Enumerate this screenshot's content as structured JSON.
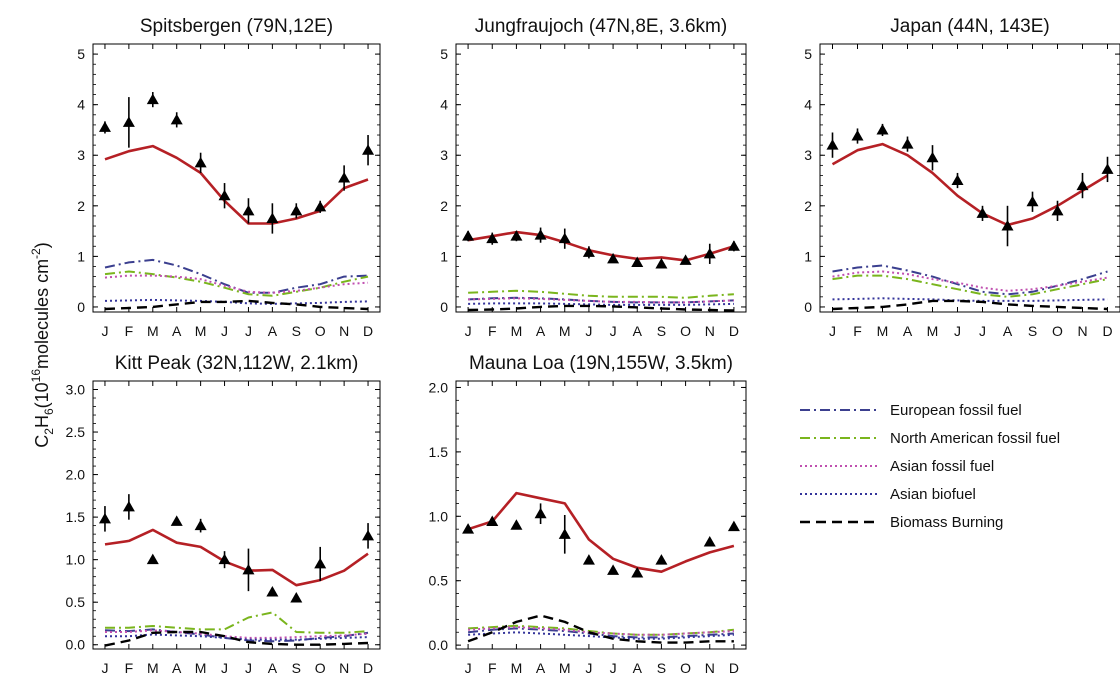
{
  "figure": {
    "ylabel_prefix": "C",
    "ylabel_sub1": "2",
    "ylabel_mid": "H",
    "ylabel_sub2": "6",
    "ylabel_units_pre": "(10",
    "ylabel_exp": "16",
    "ylabel_units_post": "molecules cm",
    "ylabel_exp2": "-2",
    "ylabel_close": ")"
  },
  "legend": [
    {
      "label": "European fossil fuel",
      "color": "#3b3f8f",
      "style": "dashdot"
    },
    {
      "label": "North American fossil fuel",
      "color": "#7ab51d",
      "style": "dashdot"
    },
    {
      "label": "Asian fossil fuel",
      "color": "#c050b0",
      "style": "dotted"
    },
    {
      "label": "Asian biofuel",
      "color": "#34349a",
      "style": "dotted"
    },
    {
      "label": "Biomass Burning",
      "color": "#000000",
      "style": "dashed"
    }
  ],
  "chart_data": [
    {
      "type": "line",
      "title": "Spitsbergen (79N,12E)",
      "categories": [
        "J",
        "F",
        "M",
        "A",
        "M",
        "J",
        "J",
        "A",
        "S",
        "O",
        "N",
        "D"
      ],
      "ylim": [
        -0.1,
        5.2
      ],
      "yticks": [
        "0",
        "1",
        "2",
        "3",
        "4",
        "5"
      ],
      "series": [
        {
          "values": [
            2.92,
            3.08,
            3.18,
            2.95,
            2.65,
            2.1,
            1.65,
            1.65,
            1.75,
            1.9,
            2.35,
            2.52
          ],
          "color": "#b52025",
          "style": "solid"
        },
        {
          "values": [
            0.78,
            0.88,
            0.93,
            0.82,
            0.65,
            0.45,
            0.28,
            0.28,
            0.38,
            0.45,
            0.6,
            0.62
          ],
          "color": "#3b3f8f",
          "style": "dashdot"
        },
        {
          "values": [
            0.65,
            0.7,
            0.65,
            0.58,
            0.5,
            0.38,
            0.25,
            0.22,
            0.3,
            0.38,
            0.5,
            0.6
          ],
          "color": "#7ab51d",
          "style": "dashdot"
        },
        {
          "values": [
            0.58,
            0.62,
            0.62,
            0.6,
            0.55,
            0.42,
            0.3,
            0.28,
            0.32,
            0.38,
            0.45,
            0.48
          ],
          "color": "#c050b0",
          "style": "dotted"
        },
        {
          "values": [
            0.12,
            0.13,
            0.14,
            0.13,
            0.12,
            0.1,
            0.07,
            0.06,
            0.07,
            0.08,
            0.1,
            0.11
          ],
          "color": "#34349a",
          "style": "dotted"
        },
        {
          "values": [
            -0.04,
            -0.02,
            0.0,
            0.05,
            0.1,
            0.1,
            0.12,
            0.08,
            0.05,
            0.0,
            -0.02,
            -0.04
          ],
          "color": "#000000",
          "style": "dashed"
        }
      ],
      "observed": {
        "values": [
          3.55,
          3.65,
          4.1,
          3.7,
          2.85,
          2.2,
          1.9,
          1.75,
          1.9,
          1.98,
          2.55,
          3.1
        ],
        "errors": [
          0.12,
          0.5,
          0.15,
          0.15,
          0.2,
          0.25,
          0.25,
          0.3,
          0.15,
          0.12,
          0.25,
          0.3
        ]
      }
    },
    {
      "type": "line",
      "title": "Jungfraujoch (47N,8E, 3.6km)",
      "categories": [
        "J",
        "F",
        "M",
        "A",
        "M",
        "J",
        "J",
        "A",
        "S",
        "O",
        "N",
        "D"
      ],
      "ylim": [
        -0.1,
        5.2
      ],
      "yticks": [
        "0",
        "1",
        "2",
        "3",
        "4",
        "5"
      ],
      "series": [
        {
          "values": [
            1.32,
            1.4,
            1.48,
            1.42,
            1.28,
            1.12,
            1.02,
            0.95,
            0.98,
            0.92,
            1.05,
            1.2
          ],
          "color": "#b52025",
          "style": "solid"
        },
        {
          "values": [
            0.15,
            0.17,
            0.18,
            0.17,
            0.15,
            0.12,
            0.1,
            0.09,
            0.09,
            0.09,
            0.11,
            0.13
          ],
          "color": "#3b3f8f",
          "style": "dashdot"
        },
        {
          "values": [
            0.28,
            0.3,
            0.32,
            0.3,
            0.26,
            0.22,
            0.2,
            0.2,
            0.2,
            0.18,
            0.22,
            0.25
          ],
          "color": "#7ab51d",
          "style": "dashdot"
        },
        {
          "values": [
            0.15,
            0.16,
            0.17,
            0.16,
            0.14,
            0.12,
            0.1,
            0.1,
            0.09,
            0.09,
            0.11,
            0.13
          ],
          "color": "#c050b0",
          "style": "dotted"
        },
        {
          "values": [
            0.06,
            0.07,
            0.07,
            0.07,
            0.06,
            0.05,
            0.04,
            0.04,
            0.04,
            0.04,
            0.05,
            0.06
          ],
          "color": "#34349a",
          "style": "dotted"
        },
        {
          "values": [
            -0.06,
            -0.05,
            -0.03,
            0.0,
            0.02,
            0.02,
            0.01,
            -0.01,
            -0.03,
            -0.05,
            -0.06,
            -0.07
          ],
          "color": "#000000",
          "style": "dashed"
        }
      ],
      "observed": {
        "values": [
          1.4,
          1.35,
          1.4,
          1.42,
          1.35,
          1.08,
          0.95,
          0.88,
          0.85,
          0.92,
          1.05,
          1.2
        ],
        "errors": [
          0.1,
          0.12,
          0.1,
          0.15,
          0.2,
          0.12,
          0.08,
          0.08,
          0.08,
          0.08,
          0.2,
          0.1
        ]
      }
    },
    {
      "type": "line",
      "title": "Japan (44N, 143E)",
      "categories": [
        "J",
        "F",
        "M",
        "A",
        "M",
        "J",
        "J",
        "A",
        "S",
        "O",
        "N",
        "D"
      ],
      "ylim": [
        -0.1,
        5.2
      ],
      "yticks": [
        "0",
        "1",
        "2",
        "3",
        "4",
        "5"
      ],
      "series": [
        {
          "values": [
            2.82,
            3.1,
            3.22,
            3.0,
            2.65,
            2.2,
            1.85,
            1.62,
            1.75,
            2.0,
            2.3,
            2.6
          ],
          "color": "#b52025",
          "style": "solid"
        },
        {
          "values": [
            0.7,
            0.78,
            0.82,
            0.72,
            0.6,
            0.45,
            0.3,
            0.25,
            0.3,
            0.42,
            0.55,
            0.7
          ],
          "color": "#3b3f8f",
          "style": "dashdot"
        },
        {
          "values": [
            0.55,
            0.62,
            0.62,
            0.55,
            0.45,
            0.35,
            0.25,
            0.2,
            0.25,
            0.35,
            0.45,
            0.55
          ],
          "color": "#7ab51d",
          "style": "dashdot"
        },
        {
          "values": [
            0.6,
            0.68,
            0.7,
            0.65,
            0.55,
            0.48,
            0.38,
            0.32,
            0.35,
            0.42,
            0.5,
            0.58
          ],
          "color": "#c050b0",
          "style": "dotted"
        },
        {
          "values": [
            0.15,
            0.16,
            0.17,
            0.16,
            0.15,
            0.13,
            0.12,
            0.12,
            0.12,
            0.13,
            0.14,
            0.15
          ],
          "color": "#34349a",
          "style": "dotted"
        },
        {
          "values": [
            -0.04,
            -0.02,
            0.0,
            0.05,
            0.12,
            0.12,
            0.1,
            0.05,
            0.02,
            0.0,
            -0.02,
            -0.04
          ],
          "color": "#000000",
          "style": "dashed"
        }
      ],
      "observed": {
        "values": [
          3.2,
          3.38,
          3.5,
          3.22,
          2.95,
          2.5,
          1.85,
          1.6,
          2.08,
          1.9,
          2.4,
          2.72
        ],
        "errors": [
          0.25,
          0.15,
          0.12,
          0.15,
          0.25,
          0.15,
          0.15,
          0.4,
          0.2,
          0.2,
          0.25,
          0.25
        ]
      }
    },
    {
      "type": "line",
      "title": "Kitt Peak (32N,112W, 2.1km)",
      "categories": [
        "J",
        "F",
        "M",
        "A",
        "M",
        "J",
        "J",
        "A",
        "S",
        "O",
        "N",
        "D"
      ],
      "ylim": [
        -0.05,
        3.1
      ],
      "yticks": [
        "0.0",
        "0.5",
        "1.0",
        "1.5",
        "2.0",
        "2.5",
        "3.0"
      ],
      "series": [
        {
          "values": [
            1.18,
            1.22,
            1.35,
            1.2,
            1.15,
            0.98,
            0.87,
            0.88,
            0.7,
            0.76,
            0.87,
            1.07
          ],
          "color": "#b52025",
          "style": "solid"
        },
        {
          "values": [
            0.17,
            0.16,
            0.18,
            0.15,
            0.12,
            0.08,
            0.05,
            0.04,
            0.05,
            0.08,
            0.1,
            0.14
          ],
          "color": "#3b3f8f",
          "style": "dashdot"
        },
        {
          "values": [
            0.2,
            0.2,
            0.22,
            0.2,
            0.18,
            0.18,
            0.32,
            0.38,
            0.15,
            0.14,
            0.14,
            0.16
          ],
          "color": "#7ab51d",
          "style": "dashdot"
        },
        {
          "values": [
            0.15,
            0.15,
            0.17,
            0.15,
            0.13,
            0.1,
            0.08,
            0.08,
            0.09,
            0.1,
            0.11,
            0.13
          ],
          "color": "#c050b0",
          "style": "dotted"
        },
        {
          "values": [
            0.1,
            0.1,
            0.12,
            0.11,
            0.1,
            0.08,
            0.06,
            0.06,
            0.06,
            0.07,
            0.08,
            0.09
          ],
          "color": "#34349a",
          "style": "dotted"
        },
        {
          "values": [
            -0.01,
            0.05,
            0.14,
            0.15,
            0.15,
            0.1,
            0.03,
            0.01,
            0.0,
            0.0,
            0.01,
            0.02
          ],
          "color": "#000000",
          "style": "dashed"
        }
      ],
      "observed": {
        "values": [
          1.48,
          1.62,
          1.0,
          1.45,
          1.4,
          1.0,
          0.88,
          0.62,
          0.55,
          0.95,
          null,
          1.28
        ],
        "errors": [
          0.15,
          0.15,
          0.0,
          0.0,
          0.08,
          0.1,
          0.25,
          0.0,
          0.05,
          0.2,
          0,
          0.15
        ]
      }
    },
    {
      "type": "line",
      "title": "Mauna Loa (19N,155W, 3.5km)",
      "categories": [
        "J",
        "F",
        "M",
        "A",
        "M",
        "J",
        "J",
        "A",
        "S",
        "O",
        "N",
        "D"
      ],
      "ylim": [
        -0.03,
        2.05
      ],
      "yticks": [
        "0.0",
        "0.5",
        "1.0",
        "1.5",
        "2.0"
      ],
      "series": [
        {
          "values": [
            0.9,
            0.96,
            1.18,
            1.14,
            1.1,
            0.82,
            0.67,
            0.6,
            0.57,
            0.65,
            0.72,
            0.77
          ],
          "color": "#b52025",
          "style": "solid"
        },
        {
          "values": [
            0.1,
            0.12,
            0.13,
            0.12,
            0.11,
            0.09,
            0.07,
            0.06,
            0.06,
            0.07,
            0.08,
            0.09
          ],
          "color": "#3b3f8f",
          "style": "dashdot"
        },
        {
          "values": [
            0.13,
            0.14,
            0.15,
            0.14,
            0.13,
            0.11,
            0.09,
            0.08,
            0.08,
            0.09,
            0.1,
            0.12
          ],
          "color": "#7ab51d",
          "style": "dashdot"
        },
        {
          "values": [
            0.12,
            0.13,
            0.14,
            0.13,
            0.12,
            0.1,
            0.09,
            0.08,
            0.08,
            0.09,
            0.1,
            0.11
          ],
          "color": "#c050b0",
          "style": "dotted"
        },
        {
          "values": [
            0.08,
            0.09,
            0.1,
            0.09,
            0.08,
            0.07,
            0.06,
            0.05,
            0.05,
            0.06,
            0.07,
            0.08
          ],
          "color": "#34349a",
          "style": "dotted"
        },
        {
          "values": [
            0.03,
            0.1,
            0.18,
            0.23,
            0.18,
            0.1,
            0.05,
            0.03,
            0.02,
            0.02,
            0.03,
            0.03
          ],
          "color": "#000000",
          "style": "dashed"
        }
      ],
      "observed": {
        "values": [
          0.9,
          0.96,
          0.93,
          1.02,
          0.86,
          0.66,
          0.58,
          0.56,
          0.66,
          null,
          0.8,
          0.92
        ],
        "errors": [
          0.03,
          0.03,
          0.0,
          0.08,
          0.15,
          0.02,
          0.0,
          0.0,
          0.0,
          0,
          0.0,
          0.0
        ]
      }
    }
  ]
}
